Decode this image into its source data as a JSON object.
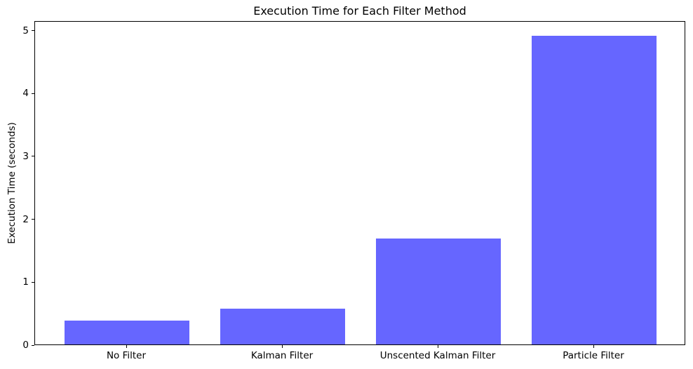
{
  "chart_data": {
    "type": "bar",
    "title": "Execution Time for Each Filter Method",
    "xlabel": "",
    "ylabel": "Execution Time (seconds)",
    "categories": [
      "No Filter",
      "Kalman Filter",
      "Unscented Kalman Filter",
      "Particle Filter"
    ],
    "values": [
      0.38,
      0.57,
      1.68,
      4.9
    ],
    "yticks": [
      0,
      1,
      2,
      3,
      4,
      5
    ],
    "ylim": [
      0,
      5.15
    ],
    "bar_color": "#6666ff",
    "frame_color": "#000000",
    "background_color": "#ffffff",
    "grid": false,
    "legend_position": "none"
  }
}
